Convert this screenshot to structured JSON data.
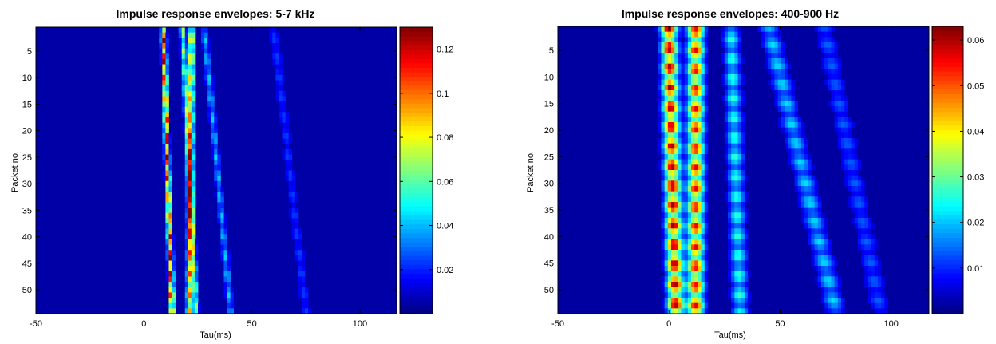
{
  "chart_data": [
    {
      "type": "heatmap",
      "title": "Impulse response envelopes: 5-7 kHz",
      "xlabel": "Tau(ms)",
      "ylabel": "Packet no.",
      "xlim": [
        -50,
        117
      ],
      "ylim": [
        54,
        1
      ],
      "xticks": [
        -50,
        0,
        50,
        100
      ],
      "yticks": [
        5,
        10,
        15,
        20,
        25,
        30,
        35,
        40,
        45,
        50
      ],
      "colorbar": {
        "colormap": "jet",
        "range": [
          0,
          0.13
        ],
        "ticks": [
          0.02,
          0.04,
          0.06,
          0.08,
          0.1,
          0.12
        ],
        "tick_labels": [
          "0.02",
          "0.04",
          "0.06",
          "0.08",
          "0.1",
          "0.12"
        ]
      },
      "background_level": 0.005,
      "ridges": [
        {
          "tau_start": 9,
          "tau_end": 13,
          "peak": 0.13,
          "width_ms": 0.8
        },
        {
          "tau_start": 22,
          "tau_end": 21,
          "peak": 0.1,
          "width_ms": 0.9
        },
        {
          "tau_start": 18,
          "tau_end": 24,
          "peak": 0.07,
          "width_ms": 0.9
        },
        {
          "tau_start": 28,
          "tau_end": 40,
          "peak": 0.04,
          "width_ms": 1.0
        },
        {
          "tau_start": 60,
          "tau_end": 75,
          "peak": 0.02,
          "width_ms": 1.5
        }
      ]
    },
    {
      "type": "heatmap",
      "title": "Impulse response envelopes: 400-900 Hz",
      "xlabel": "Tau(ms)",
      "ylabel": "Packet no.",
      "xlim": [
        -50,
        117
      ],
      "ylim": [
        54,
        1
      ],
      "xticks": [
        -50,
        0,
        50,
        100
      ],
      "yticks": [
        5,
        10,
        15,
        20,
        25,
        30,
        35,
        40,
        45,
        50
      ],
      "colorbar": {
        "colormap": "jet",
        "range": [
          0,
          0.063
        ],
        "ticks": [
          0.01,
          0.02,
          0.03,
          0.04,
          0.05,
          0.06
        ],
        "tick_labels": [
          "0.01",
          "0.02",
          "0.03",
          "0.04",
          "0.05",
          "0.06"
        ]
      },
      "background_level": 0.002,
      "ridges": [
        {
          "tau_start": 0,
          "tau_end": 3,
          "peak": 0.06,
          "width_ms": 2.5
        },
        {
          "tau_start": 12,
          "tau_end": 12,
          "peak": 0.055,
          "width_ms": 2.5
        },
        {
          "tau_start": 28,
          "tau_end": 32,
          "peak": 0.025,
          "width_ms": 2.5
        },
        {
          "tau_start": 45,
          "tau_end": 75,
          "peak": 0.02,
          "width_ms": 3.0
        },
        {
          "tau_start": 70,
          "tau_end": 95,
          "peak": 0.012,
          "width_ms": 3.0
        }
      ]
    }
  ]
}
